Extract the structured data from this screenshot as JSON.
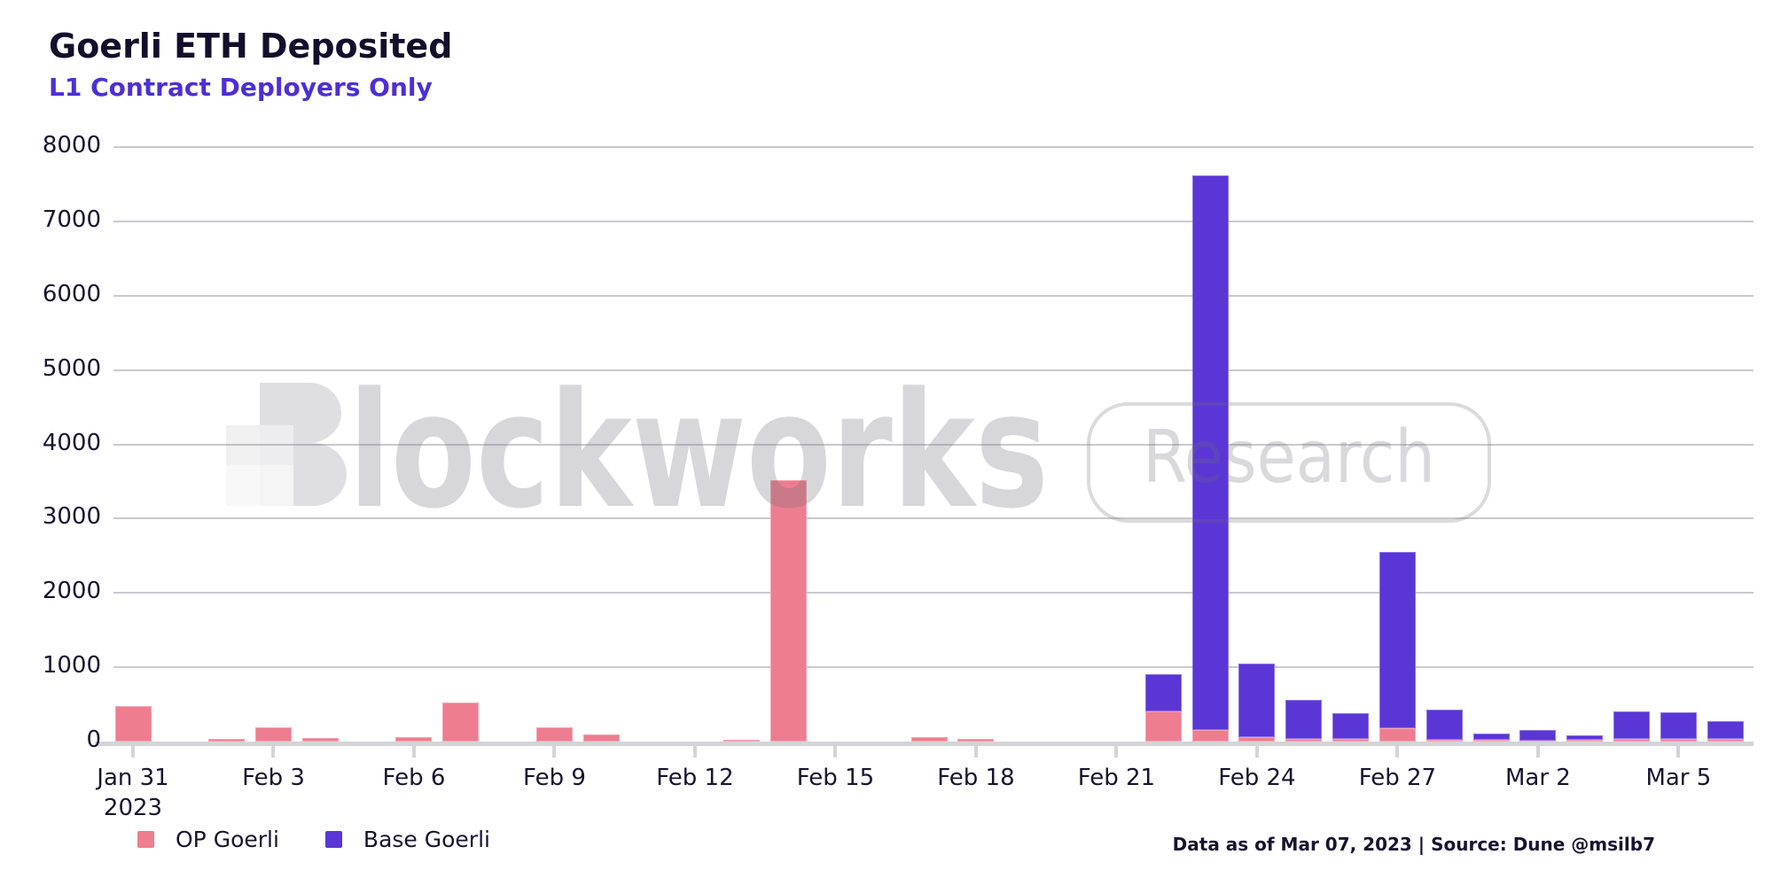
{
  "header": {
    "title": "Goerli ETH Deposited",
    "subtitle": "L1 Contract Deployers Only"
  },
  "watermark": {
    "wordmark": "Blockworks",
    "badge": "Research"
  },
  "footer": {
    "text": "Data as of Mar 07, 2023 | Source: Dune @msilb7"
  },
  "colors": {
    "title_text": "#140e2d",
    "subtitle_accent": "#4c2fd6",
    "axis_text": "#17132f",
    "gridline": "#c9c9cf",
    "axis_line": "#d4d4d8",
    "op_goerli": "#EE7D90",
    "base_goerli": "#5A36D6",
    "watermark_gray": "#dcdcde"
  },
  "chart_data": {
    "type": "bar",
    "stacked": true,
    "title": "Goerli ETH Deposited",
    "subtitle": "L1 Contract Deployers Only",
    "xlabel": "",
    "ylabel": "",
    "ylim": [
      0,
      8000
    ],
    "ytick_step": 1000,
    "grid": "horizontal",
    "legend_position": "bottom-left",
    "categories": [
      "Jan 31",
      "Feb 1",
      "Feb 2",
      "Feb 3",
      "Feb 4",
      "Feb 5",
      "Feb 6",
      "Feb 7",
      "Feb 8",
      "Feb 9",
      "Feb 10",
      "Feb 11",
      "Feb 12",
      "Feb 13",
      "Feb 14",
      "Feb 15",
      "Feb 16",
      "Feb 17",
      "Feb 18",
      "Feb 19",
      "Feb 20",
      "Feb 21",
      "Feb 22",
      "Feb 23",
      "Feb 24",
      "Feb 25",
      "Feb 26",
      "Feb 27",
      "Feb 28",
      "Mar 1",
      "Mar 2",
      "Mar 3",
      "Mar 4",
      "Mar 5",
      "Mar 6"
    ],
    "series": [
      {
        "name": "OP Goerli",
        "color": "#EE7D90",
        "values": [
          480,
          0,
          40,
          190,
          45,
          0,
          60,
          530,
          0,
          195,
          100,
          0,
          0,
          25,
          3520,
          0,
          0,
          65,
          35,
          0,
          0,
          0,
          405,
          150,
          60,
          30,
          30,
          175,
          20,
          25,
          10,
          20,
          40,
          30,
          40
        ]
      },
      {
        "name": "Base Goerli",
        "color": "#5A36D6",
        "values": [
          0,
          0,
          0,
          0,
          0,
          0,
          0,
          0,
          0,
          0,
          0,
          0,
          0,
          0,
          0,
          0,
          0,
          0,
          0,
          0,
          0,
          0,
          505,
          7470,
          985,
          530,
          350,
          2375,
          415,
          85,
          140,
          60,
          360,
          360,
          230
        ]
      }
    ],
    "xticks": [
      {
        "label": "Jan 31",
        "sublabel": "2023",
        "day": 0
      },
      {
        "label": "Feb 3",
        "day": 3
      },
      {
        "label": "Feb 6",
        "day": 6
      },
      {
        "label": "Feb 9",
        "day": 9
      },
      {
        "label": "Feb 12",
        "day": 12
      },
      {
        "label": "Feb 15",
        "day": 15
      },
      {
        "label": "Feb 18",
        "day": 18
      },
      {
        "label": "Feb 21",
        "day": 21
      },
      {
        "label": "Feb 24",
        "day": 24
      },
      {
        "label": "Feb 27",
        "day": 27
      },
      {
        "label": "Mar 2",
        "day": 30
      },
      {
        "label": "Mar 5",
        "day": 33
      }
    ]
  }
}
